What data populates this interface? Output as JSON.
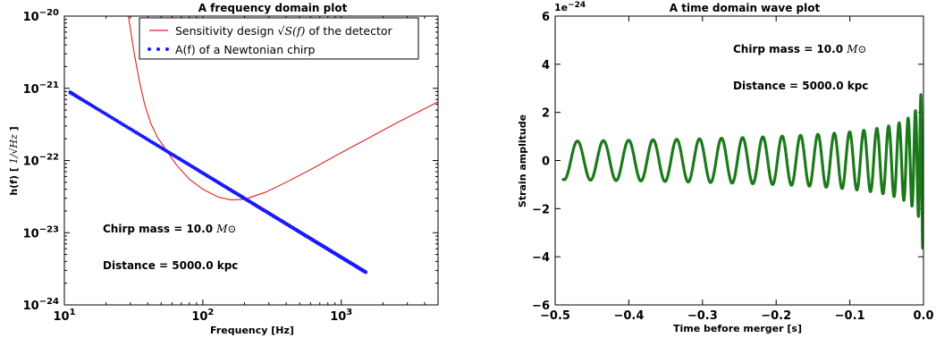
{
  "chart_data": [
    {
      "type": "line",
      "title": "A frequency domain plot",
      "xlabel": "Frequency [Hz]",
      "ylabel_prefix": "h(f) [",
      "ylabel_unit": "1/√Hz",
      "ylabel_suffix": "]",
      "x_scale": "log",
      "y_scale": "log",
      "xlim": [
        10,
        5000
      ],
      "ylim": [
        1e-24,
        1e-20
      ],
      "x_ticks": [
        {
          "value": 10,
          "base": "10",
          "exp": "1"
        },
        {
          "value": 100,
          "base": "10",
          "exp": "2"
        },
        {
          "value": 1000,
          "base": "10",
          "exp": "3"
        }
      ],
      "y_ticks": [
        {
          "value": 1e-24,
          "base": "10",
          "exp": "−24"
        },
        {
          "value": 1e-23,
          "base": "10",
          "exp": "−23"
        },
        {
          "value": 1e-22,
          "base": "10",
          "exp": "−22"
        },
        {
          "value": 1e-21,
          "base": "10",
          "exp": "−21"
        },
        {
          "value": 1e-20,
          "base": "10",
          "exp": "−20"
        }
      ],
      "legend_position": "top-right",
      "series": [
        {
          "name_prefix": "Sensitivity design ",
          "name_math": "√S(f)",
          "name_suffix": " of the detector",
          "style": "line",
          "color": "#e02020",
          "points": [
            [
              29,
              1e-20
            ],
            [
              32,
              3e-21
            ],
            [
              35,
              1.2e-21
            ],
            [
              38,
              6e-22
            ],
            [
              42,
              3.3e-22
            ],
            [
              47,
              2.1e-22
            ],
            [
              55,
              1.35e-22
            ],
            [
              65,
              8.5e-23
            ],
            [
              80,
              5.5e-23
            ],
            [
              100,
              4e-23
            ],
            [
              130,
              3.1e-23
            ],
            [
              160,
              2.85e-23
            ],
            [
              200,
              2.9e-23
            ],
            [
              280,
              3.6e-23
            ],
            [
              400,
              5e-23
            ],
            [
              600,
              7.5e-23
            ],
            [
              900,
              1.15e-22
            ],
            [
              1500,
              1.95e-22
            ],
            [
              2500,
              3.3e-22
            ],
            [
              5000,
              6.5e-22
            ]
          ]
        },
        {
          "name": "A(f) of a Newtonian chirp",
          "style": "dots",
          "color": "#1a1aff",
          "f_start": 11,
          "f_end": 1500,
          "h_start": 8.8e-22,
          "slope": -1.1667
        }
      ],
      "annotations": [
        {
          "prefix": "Chirp mass = 10.0 ",
          "math": "M⊙"
        },
        {
          "prefix": "Distance = 5000.0 kpc",
          "math": ""
        }
      ]
    },
    {
      "type": "line",
      "title": "A time domain wave plot",
      "xlabel": "Time before merger [s]",
      "ylabel": "Strain amplitude",
      "offset_text_base": "1e",
      "offset_text_exp": "−24",
      "xlim": [
        -0.5,
        0.0
      ],
      "ylim": [
        -6,
        6
      ],
      "x_ticks": [
        "−0.5",
        "−0.4",
        "−0.3",
        "−0.2",
        "−0.1",
        "0.0"
      ],
      "x_tick_values": [
        -0.5,
        -0.4,
        -0.3,
        -0.2,
        -0.1,
        0.0
      ],
      "y_ticks": [
        "−6",
        "−4",
        "−2",
        "0",
        "2",
        "4",
        "6"
      ],
      "y_tick_values": [
        -6,
        -4,
        -2,
        0,
        2,
        4,
        6
      ],
      "series": [
        {
          "style": "line",
          "color": "#1a7a1a",
          "t_start": -0.49,
          "t_end": -0.001,
          "amplitude_at_start": 0.8,
          "amplitude_scaling_exponent": -0.25,
          "chirp_frequency_at_start": 27.5
        }
      ],
      "annotations": [
        {
          "prefix": "Chirp mass = 10.0 ",
          "math": "M⊙"
        },
        {
          "prefix": "Distance = 5000.0 kpc",
          "math": ""
        }
      ]
    }
  ]
}
